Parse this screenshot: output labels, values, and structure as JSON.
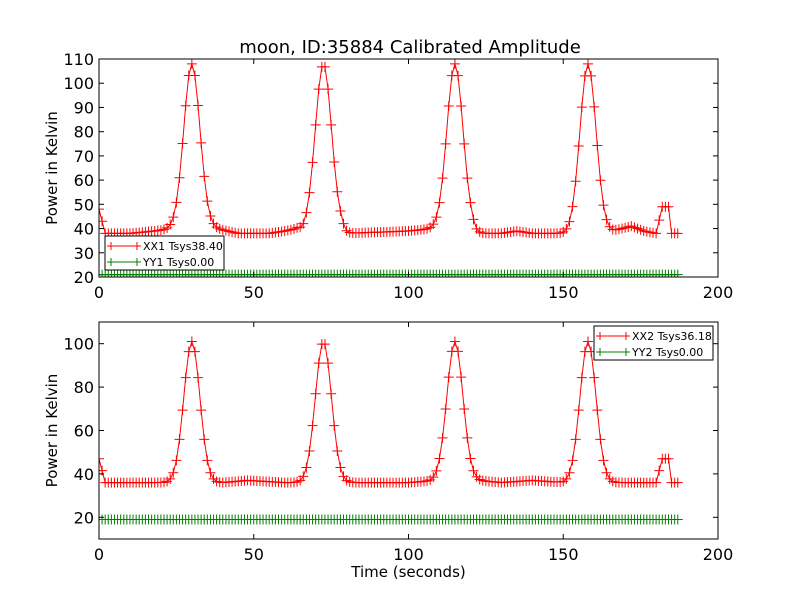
{
  "figure": {
    "title": "moon, ID:35884 Calibrated Amplitude"
  },
  "chart_data": [
    {
      "type": "line",
      "title": "moon, ID:35884 Calibrated Amplitude",
      "xlabel": "",
      "ylabel": "Power in Kelvin",
      "xlim": [
        0,
        200
      ],
      "ylim": [
        20,
        110
      ],
      "xticks": [
        0,
        50,
        100,
        150,
        200
      ],
      "yticks": [
        20,
        30,
        40,
        50,
        60,
        70,
        80,
        90,
        100,
        110
      ],
      "grid": false,
      "legend": "lower-left",
      "x": {
        "start": 0,
        "stop": 187,
        "step": 1
      },
      "series": [
        {
          "name": "XX1 Tsys38.40",
          "color": "#ff0000",
          "marker": "+",
          "baseline": [
            [
              0,
              48
            ],
            [
              2,
              38
            ],
            [
              10,
              38
            ],
            [
              18,
              39
            ],
            [
              24,
              40
            ],
            [
              34,
              41
            ],
            [
              38,
              40
            ],
            [
              45,
              38
            ],
            [
              55,
              38
            ],
            [
              60,
              39
            ],
            [
              64,
              40
            ],
            [
              66,
              39
            ],
            [
              70,
              40
            ],
            [
              78,
              40
            ],
            [
              80,
              38
            ],
            [
              100,
              39
            ],
            [
              108,
              40
            ],
            [
              112,
              40
            ],
            [
              120,
              40
            ],
            [
              122,
              38
            ],
            [
              130,
              38
            ],
            [
              135,
              39
            ],
            [
              140,
              38
            ],
            [
              152,
              38
            ],
            [
              166,
              39
            ],
            [
              172,
              41
            ],
            [
              176,
              39
            ],
            [
              180,
              38
            ],
            [
              182,
              49
            ],
            [
              184,
              49
            ],
            [
              185,
              38
            ],
            [
              187,
              38
            ]
          ],
          "peaks": [
            {
              "center": 30,
              "height": 108
            },
            {
              "center": 72.5,
              "height": 108
            },
            {
              "center": 115,
              "height": 108
            },
            {
              "center": 158,
              "height": 108
            }
          ],
          "peak_width_sigma": 2.6
        },
        {
          "name": "YY1 Tsys0.00",
          "color": "#008000",
          "marker": "+",
          "baseline": [
            [
              0,
              21
            ],
            [
              187,
              21
            ]
          ],
          "peaks": [],
          "peak_width_sigma": 0
        }
      ]
    },
    {
      "type": "line",
      "title": "",
      "xlabel": "Time (seconds)",
      "ylabel": "Power in Kelvin",
      "xlim": [
        0,
        200
      ],
      "ylim": [
        10,
        110
      ],
      "xticks": [
        0,
        50,
        100,
        150,
        200
      ],
      "yticks": [
        20,
        40,
        60,
        80,
        100
      ],
      "grid": false,
      "legend": "upper-right",
      "x": {
        "start": 0,
        "stop": 187,
        "step": 1
      },
      "series": [
        {
          "name": "XX2 Tsys36.18",
          "color": "#ff0000",
          "marker": "+",
          "baseline": [
            [
              0,
              47
            ],
            [
              2,
              36
            ],
            [
              40,
              36
            ],
            [
              48,
              37
            ],
            [
              60,
              36
            ],
            [
              100,
              36
            ],
            [
              110,
              37
            ],
            [
              122,
              37
            ],
            [
              130,
              36
            ],
            [
              140,
              37
            ],
            [
              150,
              36
            ],
            [
              180,
              36
            ],
            [
              182,
              47
            ],
            [
              184,
              47
            ],
            [
              185,
              36
            ],
            [
              187,
              36
            ]
          ],
          "peaks": [
            {
              "center": 30,
              "height": 101
            },
            {
              "center": 72.5,
              "height": 101
            },
            {
              "center": 115,
              "height": 101
            },
            {
              "center": 158,
              "height": 101
            }
          ],
          "peak_width_sigma": 2.6
        },
        {
          "name": "YY2 Tsys0.00",
          "color": "#008000",
          "marker": "+",
          "baseline": [
            [
              0,
              19
            ],
            [
              187,
              19
            ]
          ],
          "peaks": [],
          "peak_width_sigma": 0
        }
      ]
    }
  ]
}
